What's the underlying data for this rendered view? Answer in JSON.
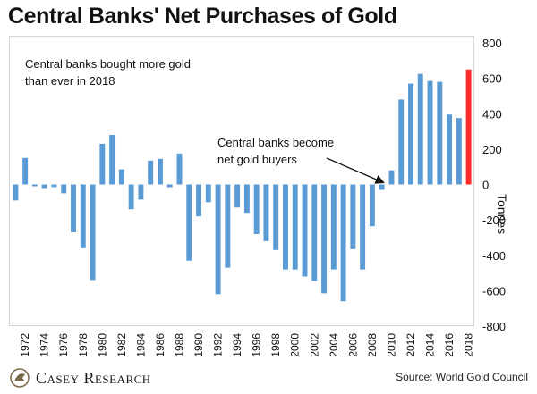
{
  "title": "Central Banks' Net Purchases of Gold",
  "annotation_top_line1": "Central banks bought more gold",
  "annotation_top_line2": "than ever in 2018",
  "annotation_mid_line1": "Central banks become",
  "annotation_mid_line2": "net gold buyers",
  "logo_text": "Casey Research",
  "source": "Source: World Gold Council",
  "colors": {
    "bar": "#5b9bd5",
    "highlight": "#ff2a2a",
    "text": "#111111"
  },
  "chart_data": {
    "type": "bar",
    "title": "Central Banks' Net Purchases of Gold",
    "ylabel": "Tonnes",
    "ylim": [
      -800,
      800
    ],
    "yticks": [
      "800",
      "600",
      "400",
      "200",
      "0",
      "-200",
      "-400",
      "-600",
      "-800"
    ],
    "x_tick_labels": [
      "1972",
      "1974",
      "1976",
      "1978",
      "1980",
      "1982",
      "1984",
      "1986",
      "1988",
      "1990",
      "1992",
      "1994",
      "1996",
      "1998",
      "2000",
      "2002",
      "2004",
      "2006",
      "2008",
      "2010",
      "2012",
      "2014",
      "2016",
      "2018"
    ],
    "categories": [
      1971,
      1972,
      1973,
      1974,
      1975,
      1976,
      1977,
      1978,
      1979,
      1980,
      1981,
      1982,
      1983,
      1984,
      1985,
      1986,
      1987,
      1988,
      1989,
      1990,
      1991,
      1992,
      1993,
      1994,
      1995,
      1996,
      1997,
      1998,
      1999,
      2000,
      2001,
      2002,
      2003,
      2004,
      2005,
      2006,
      2007,
      2008,
      2009,
      2010,
      2011,
      2012,
      2013,
      2014,
      2015,
      2016,
      2017,
      2018
    ],
    "values": [
      -90,
      150,
      -10,
      -20,
      -15,
      -50,
      -270,
      -360,
      -540,
      230,
      280,
      85,
      -140,
      -85,
      135,
      145,
      -15,
      175,
      -430,
      -180,
      -100,
      -620,
      -470,
      -130,
      -160,
      -280,
      -320,
      -370,
      -480,
      -480,
      -520,
      -545,
      -615,
      -480,
      -660,
      -365,
      -480,
      -235,
      -30,
      80,
      480,
      570,
      625,
      585,
      580,
      395,
      375,
      650
    ],
    "highlight_category": 2018,
    "grid": false
  }
}
